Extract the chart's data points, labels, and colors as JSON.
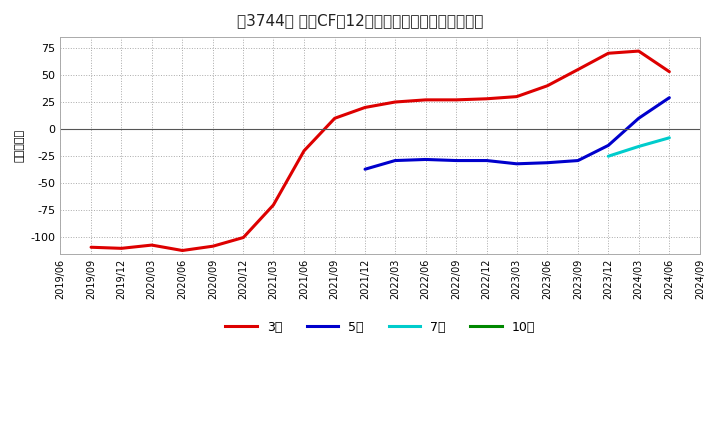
{
  "title": "［3744］ 投資CFの12か月移動合計の平均値の推移",
  "ylabel": "（百万円）",
  "background_color": "#ffffff",
  "plot_bg_color": "#ffffff",
  "grid_color": "#aaaaaa",
  "ylim": [
    -115,
    85
  ],
  "yticks": [
    -100,
    -75,
    -50,
    -25,
    0,
    25,
    50,
    75
  ],
  "series": {
    "3year": {
      "color": "#dd0000",
      "label": "3年",
      "x": [
        "2019/06",
        "2019/09",
        "2019/12",
        "2020/03",
        "2020/06",
        "2020/09",
        "2020/12",
        "2021/03",
        "2021/06",
        "2021/09",
        "2021/12",
        "2022/03",
        "2022/06",
        "2022/09",
        "2022/12",
        "2023/03",
        "2023/06",
        "2023/09",
        "2023/12",
        "2024/03",
        "2024/06"
      ],
      "y": [
        null,
        -109,
        -110,
        -107,
        -112,
        -108,
        -100,
        -70,
        -20,
        10,
        20,
        25,
        27,
        27,
        28,
        30,
        40,
        55,
        70,
        72,
        53
      ]
    },
    "5year": {
      "color": "#0000cc",
      "label": "5年",
      "x": [
        "2021/12",
        "2022/03",
        "2022/06",
        "2022/09",
        "2022/12",
        "2023/03",
        "2023/06",
        "2023/09",
        "2023/12",
        "2024/03",
        "2024/06"
      ],
      "y": [
        -37,
        -29,
        -28,
        -29,
        -29,
        -32,
        -31,
        -29,
        -15,
        10,
        29
      ]
    },
    "7year": {
      "color": "#00cccc",
      "label": "7年",
      "x": [
        "2023/12",
        "2024/03",
        "2024/06"
      ],
      "y": [
        -25,
        -16,
        -8
      ]
    },
    "10year": {
      "color": "#008800",
      "label": "10年",
      "x": [],
      "y": []
    }
  },
  "x_start": "2019/06",
  "x_end": "2024/09",
  "x_ticks": [
    "2019/06",
    "2019/09",
    "2019/12",
    "2020/03",
    "2020/06",
    "2020/09",
    "2020/12",
    "2021/03",
    "2021/06",
    "2021/09",
    "2021/12",
    "2022/03",
    "2022/06",
    "2022/09",
    "2022/12",
    "2023/03",
    "2023/06",
    "2023/09",
    "2023/12",
    "2024/03",
    "2024/06",
    "2024/09"
  ]
}
